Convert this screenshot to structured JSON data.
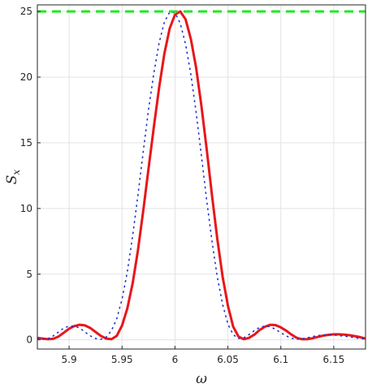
{
  "chart_data": {
    "type": "line",
    "xlabel": "ω",
    "ylabel": "S",
    "ylabel_subscript": "x",
    "xlim": [
      5.87,
      6.18
    ],
    "ylim": [
      -0.7,
      25.5
    ],
    "xticks": [
      5.9,
      5.95,
      6.0,
      6.05,
      6.1,
      6.15
    ],
    "xtick_labels": [
      "5.9",
      "5.95",
      "6",
      "6.05",
      "6.1",
      "6.15"
    ],
    "yticks": [
      0,
      5,
      10,
      15,
      20,
      25
    ],
    "ytick_labels": [
      "0",
      "5",
      "10",
      "15",
      "20",
      "25"
    ],
    "grid": true,
    "legend": "none",
    "series": [
      {
        "style": "solid",
        "color": "#e8161b",
        "x": [
          5.87,
          5.875,
          5.88,
          5.885,
          5.89,
          5.895,
          5.9,
          5.905,
          5.91,
          5.915,
          5.92,
          5.925,
          5.93,
          5.935,
          5.94,
          5.945,
          5.95,
          5.955,
          5.96,
          5.965,
          5.97,
          5.975,
          5.98,
          5.985,
          5.99,
          5.995,
          6.0,
          6.005,
          6.01,
          6.015,
          6.02,
          6.025,
          6.03,
          6.035,
          6.04,
          6.045,
          6.05,
          6.055,
          6.06,
          6.065,
          6.07,
          6.075,
          6.08,
          6.085,
          6.09,
          6.095,
          6.1,
          6.105,
          6.11,
          6.115,
          6.12,
          6.125,
          6.13,
          6.135,
          6.14,
          6.145,
          6.15,
          6.155,
          6.16,
          6.165,
          6.17,
          6.175,
          6.18
        ],
        "y": [
          0.15,
          0.1,
          0.05,
          0.08,
          0.25,
          0.55,
          0.85,
          1.05,
          1.15,
          1.1,
          0.9,
          0.6,
          0.3,
          0.1,
          0.05,
          0.3,
          1.1,
          2.4,
          4.3,
          6.8,
          9.8,
          13.0,
          16.2,
          19.2,
          21.8,
          23.7,
          24.75,
          25.0,
          24.4,
          22.9,
          20.7,
          17.8,
          14.5,
          11.0,
          7.7,
          4.8,
          2.6,
          1.0,
          0.25,
          0.05,
          0.15,
          0.4,
          0.75,
          1.0,
          1.15,
          1.12,
          0.95,
          0.7,
          0.4,
          0.15,
          0.05,
          0.05,
          0.12,
          0.22,
          0.32,
          0.38,
          0.42,
          0.42,
          0.4,
          0.35,
          0.28,
          0.2,
          0.1
        ]
      },
      {
        "style": "dotted",
        "color": "#1a2fd4",
        "x": [
          5.87,
          5.875,
          5.88,
          5.885,
          5.89,
          5.895,
          5.9,
          5.905,
          5.91,
          5.915,
          5.92,
          5.925,
          5.93,
          5.935,
          5.94,
          5.945,
          5.95,
          5.955,
          5.96,
          5.965,
          5.97,
          5.975,
          5.98,
          5.985,
          5.99,
          5.995,
          6.0,
          6.005,
          6.01,
          6.015,
          6.02,
          6.025,
          6.03,
          6.035,
          6.04,
          6.045,
          6.05,
          6.055,
          6.06,
          6.065,
          6.07,
          6.075,
          6.08,
          6.085,
          6.09,
          6.095,
          6.1,
          6.105,
          6.11,
          6.115,
          6.12,
          6.125,
          6.13,
          6.135,
          6.14,
          6.145,
          6.15,
          6.155,
          6.16,
          6.165,
          6.17,
          6.175,
          6.18
        ],
        "y": [
          0.1,
          0.05,
          0.1,
          0.3,
          0.6,
          0.9,
          1.05,
          1.05,
          0.9,
          0.6,
          0.3,
          0.1,
          0.05,
          0.2,
          0.7,
          1.6,
          3.1,
          5.2,
          7.9,
          11.0,
          14.3,
          17.5,
          20.3,
          22.6,
          24.2,
          24.95,
          24.9,
          24.1,
          22.5,
          20.2,
          17.3,
          14.0,
          10.6,
          7.5,
          4.8,
          2.7,
          1.2,
          0.4,
          0.1,
          0.15,
          0.4,
          0.7,
          0.95,
          1.05,
          1.0,
          0.8,
          0.55,
          0.3,
          0.12,
          0.05,
          0.08,
          0.15,
          0.25,
          0.32,
          0.36,
          0.38,
          0.36,
          0.32,
          0.28,
          0.22,
          0.16,
          0.1,
          0.06
        ]
      },
      {
        "style": "dashed",
        "color": "#22e822",
        "x": [
          5.87,
          6.18
        ],
        "y": [
          25,
          25
        ]
      }
    ]
  }
}
